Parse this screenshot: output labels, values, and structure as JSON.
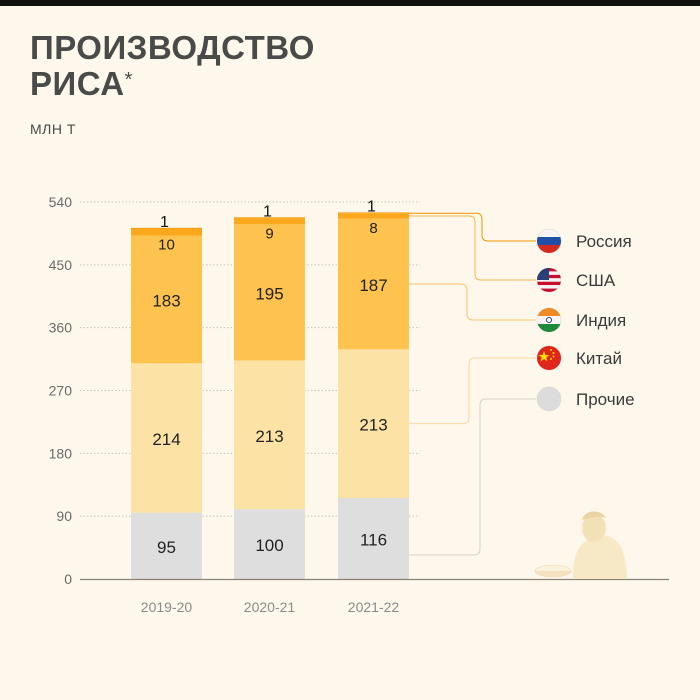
{
  "title_line1": "ПРОИЗВОДСТВО",
  "title_line2": "РИСА",
  "title_mark": "*",
  "unit": "МЛН Т",
  "chart_data": {
    "type": "bar",
    "stacked": true,
    "categories": [
      "2019-20",
      "2020-21",
      "2021-22"
    ],
    "series": [
      {
        "name": "Прочие",
        "values": [
          95,
          100,
          116
        ],
        "color": "#dedede",
        "icon": "grey-circle-icon"
      },
      {
        "name": "Китай",
        "values": [
          214,
          213,
          213
        ],
        "color": "#fde2a6",
        "icon": "china-flag-icon"
      },
      {
        "name": "Индия",
        "values": [
          183,
          195,
          187
        ],
        "color": "#fec34e",
        "icon": "india-flag-icon"
      },
      {
        "name": "США",
        "values": [
          10,
          9,
          8
        ],
        "color": "#fca81c",
        "icon": "usa-flag-icon"
      },
      {
        "name": "Россия",
        "values": [
          1,
          1,
          1
        ],
        "color": "#f39200",
        "icon": "russia-flag-icon"
      }
    ],
    "yticks": [
      0,
      90,
      180,
      270,
      360,
      450,
      540
    ],
    "ylim": [
      0,
      540
    ],
    "legend_order": [
      "Россия",
      "США",
      "Индия",
      "Китай",
      "Прочие"
    ],
    "grid": "dashed horizontal",
    "legend_placement": "right"
  }
}
